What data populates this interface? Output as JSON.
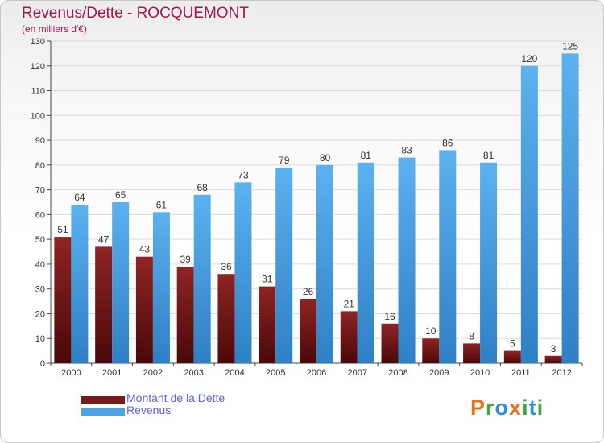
{
  "header": {
    "title": "Revenus/Dette - ROCQUEMONT",
    "subtitle": "(en milliers d'€)"
  },
  "colors": {
    "dette": "#7a1a1a",
    "revenus": "#4aa3e6",
    "title": "#a0184c",
    "legend_text": "#5b63e8"
  },
  "legend": {
    "dette_label": "Montant de la Dette",
    "revenus_label": "Revenus"
  },
  "logo": {
    "text": "Proxiti"
  },
  "chart_data": {
    "type": "bar",
    "title": "Revenus/Dette - ROCQUEMONT",
    "subtitle": "(en milliers d'€)",
    "xlabel": "",
    "ylabel": "",
    "ylim": [
      0,
      130
    ],
    "yticks": [
      0,
      10,
      20,
      30,
      40,
      50,
      60,
      70,
      80,
      90,
      100,
      110,
      120,
      130
    ],
    "grid": true,
    "legend_position": "bottom-left",
    "categories": [
      "2000",
      "2001",
      "2002",
      "2003",
      "2004",
      "2005",
      "2006",
      "2007",
      "2008",
      "2009",
      "2010",
      "2011",
      "2012"
    ],
    "series": [
      {
        "name": "Montant de la Dette",
        "values": [
          51,
          47,
          43,
          39,
          36,
          31,
          26,
          21,
          16,
          10,
          8,
          5,
          3
        ]
      },
      {
        "name": "Revenus",
        "values": [
          64,
          65,
          61,
          68,
          73,
          79,
          80,
          81,
          83,
          86,
          81,
          120,
          125
        ]
      }
    ]
  }
}
